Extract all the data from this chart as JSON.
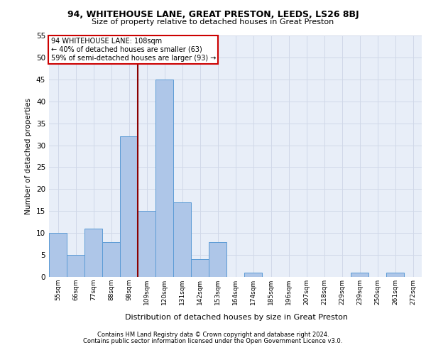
{
  "title1": "94, WHITEHOUSE LANE, GREAT PRESTON, LEEDS, LS26 8BJ",
  "title2": "Size of property relative to detached houses in Great Preston",
  "xlabel": "Distribution of detached houses by size in Great Preston",
  "ylabel": "Number of detached properties",
  "categories": [
    "55sqm",
    "66sqm",
    "77sqm",
    "88sqm",
    "98sqm",
    "109sqm",
    "120sqm",
    "131sqm",
    "142sqm",
    "153sqm",
    "164sqm",
    "174sqm",
    "185sqm",
    "196sqm",
    "207sqm",
    "218sqm",
    "229sqm",
    "239sqm",
    "250sqm",
    "261sqm",
    "272sqm"
  ],
  "values": [
    10,
    5,
    11,
    8,
    32,
    15,
    45,
    17,
    4,
    8,
    0,
    1,
    0,
    0,
    0,
    0,
    0,
    1,
    0,
    1,
    0
  ],
  "bar_color": "#aec6e8",
  "bar_edge_color": "#5b9bd5",
  "vline_x": 4.5,
  "vline_color": "#8b0000",
  "annotation_line1": "94 WHITEHOUSE LANE: 108sqm",
  "annotation_line2": "← 40% of detached houses are smaller (63)",
  "annotation_line3": "59% of semi-detached houses are larger (93) →",
  "annotation_box_color": "#ffffff",
  "annotation_box_edge_color": "#cc0000",
  "ylim": [
    0,
    55
  ],
  "yticks": [
    0,
    5,
    10,
    15,
    20,
    25,
    30,
    35,
    40,
    45,
    50,
    55
  ],
  "grid_color": "#d0d8e8",
  "bg_color": "#e8eef8",
  "footer1": "Contains HM Land Registry data © Crown copyright and database right 2024.",
  "footer2": "Contains public sector information licensed under the Open Government Licence v3.0."
}
